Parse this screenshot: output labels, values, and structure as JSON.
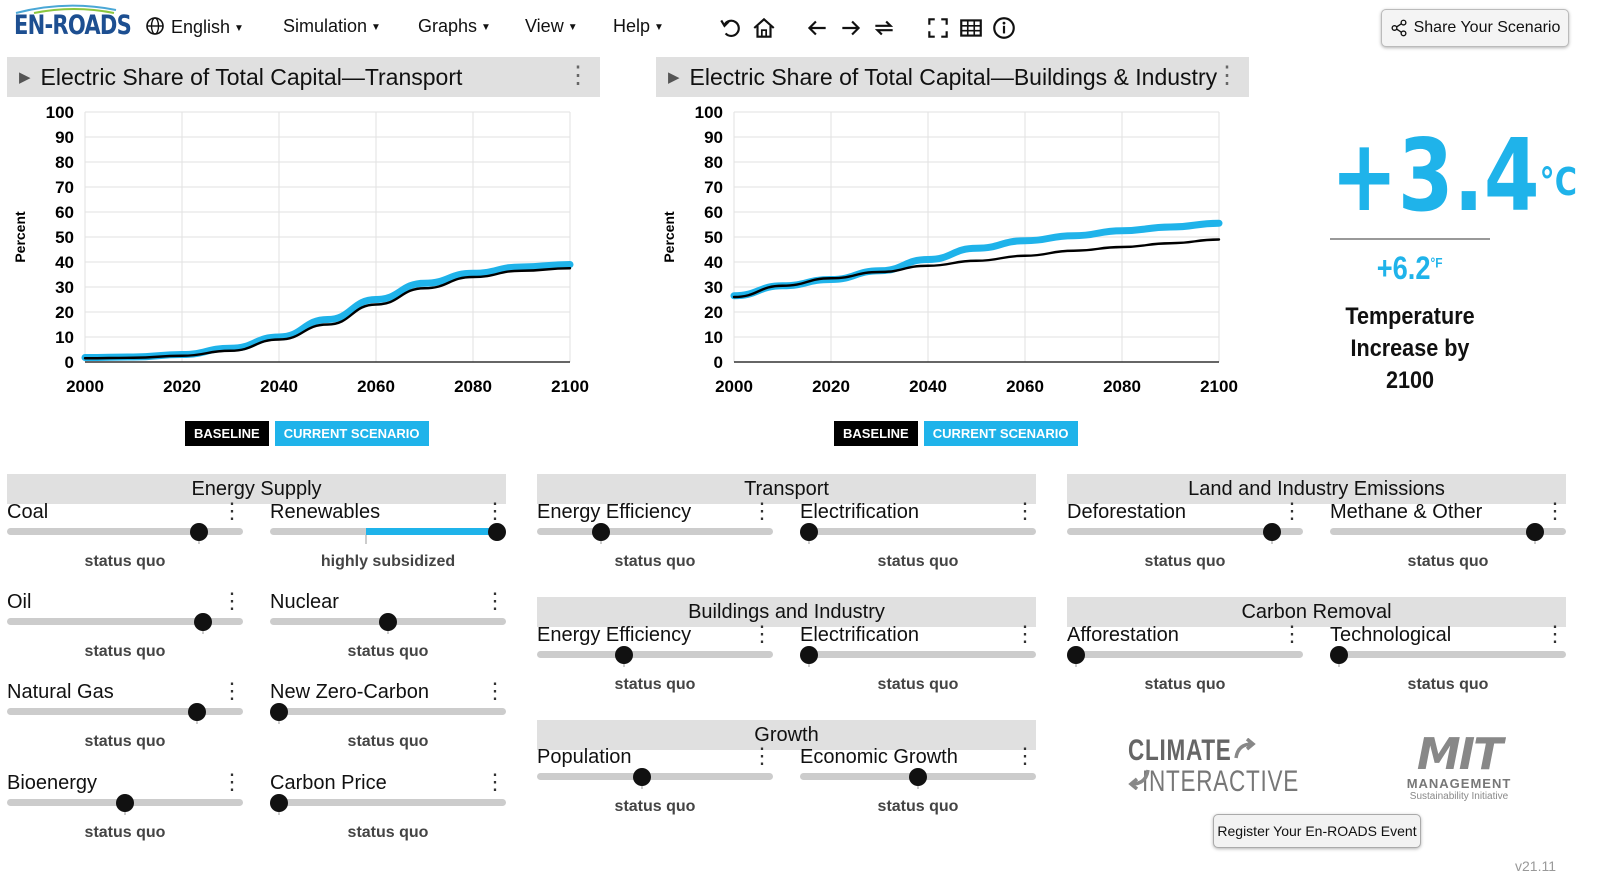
{
  "app": {
    "logo": "EN-ROADS",
    "version": "v21.11"
  },
  "menu": {
    "language": "English",
    "simulation": "Simulation",
    "graphs": "Graphs",
    "view": "View",
    "help": "Help"
  },
  "share_button": "Share Your Scenario",
  "charts": [
    {
      "title": "Electric Share of Total Capital—Transport",
      "chart_data": {
        "type": "line",
        "ylabel": "Percent",
        "xlim": [
          2000,
          2100
        ],
        "ylim": [
          0,
          100
        ],
        "x_ticks": [
          2000,
          2020,
          2040,
          2060,
          2080,
          2100
        ],
        "y_ticks": [
          0,
          10,
          20,
          30,
          40,
          50,
          60,
          70,
          80,
          90,
          100
        ],
        "series": [
          {
            "name": "BASELINE",
            "color": "#000000",
            "x": [
              2000,
              2010,
              2020,
              2030,
              2040,
              2050,
              2060,
              2070,
              2080,
              2090,
              2100
            ],
            "values": [
              1.5,
              1.7,
              2.5,
              4.5,
              9,
              15,
              23,
              29.5,
              34,
              36.5,
              37.5
            ]
          },
          {
            "name": "CURRENT SCENARIO",
            "color": "#1fb3ea",
            "x": [
              2000,
              2010,
              2020,
              2030,
              2040,
              2050,
              2060,
              2070,
              2080,
              2090,
              2100
            ],
            "values": [
              1.8,
              2,
              3,
              5.5,
              10,
              17,
              25,
              31.5,
              35.5,
              38,
              39
            ]
          }
        ]
      },
      "legend": {
        "baseline": "BASELINE",
        "current": "CURRENT SCENARIO"
      }
    },
    {
      "title": "Electric Share of Total Capital—Buildings & Industry",
      "chart_data": {
        "type": "line",
        "ylabel": "Percent",
        "xlim": [
          2000,
          2100
        ],
        "ylim": [
          0,
          100
        ],
        "x_ticks": [
          2000,
          2020,
          2040,
          2060,
          2080,
          2100
        ],
        "y_ticks": [
          0,
          10,
          20,
          30,
          40,
          50,
          60,
          70,
          80,
          90,
          100
        ],
        "series": [
          {
            "name": "BASELINE",
            "color": "#000000",
            "x": [
              2000,
              2010,
              2020,
              2030,
              2040,
              2050,
              2060,
              2070,
              2080,
              2090,
              2100
            ],
            "values": [
              26,
              30.5,
              33.5,
              36,
              38.5,
              40.5,
              42.5,
              44.5,
              46,
              47.5,
              49
            ]
          },
          {
            "name": "CURRENT SCENARIO",
            "color": "#1fb3ea",
            "x": [
              2000,
              2010,
              2020,
              2030,
              2040,
              2050,
              2060,
              2070,
              2080,
              2090,
              2100
            ],
            "values": [
              26.5,
              30.5,
              33,
              36.5,
              41,
              45.5,
              48.5,
              50.5,
              52.5,
              54,
              55.5
            ]
          }
        ]
      },
      "legend": {
        "baseline": "BASELINE",
        "current": "CURRENT SCENARIO"
      }
    }
  ],
  "temperature": {
    "celsius": "+3.4",
    "c_unit": "°C",
    "fahrenheit": "+6.2",
    "f_unit": "°F",
    "label_line1": "Temperature",
    "label_line2": "Increase by",
    "label_line3": "2100"
  },
  "sections": {
    "energy_supply": "Energy Supply",
    "transport": "Transport",
    "buildings": "Buildings and Industry",
    "growth": "Growth",
    "land": "Land and Industry Emissions",
    "carbon_removal": "Carbon Removal"
  },
  "sliders": {
    "coal": {
      "label": "Coal",
      "status": "status quo",
      "value": 0.84
    },
    "renewables": {
      "label": "Renewables",
      "status": "highly subsidized",
      "value": 1.0,
      "baseline": 0.4
    },
    "oil": {
      "label": "Oil",
      "status": "status quo",
      "value": 0.86
    },
    "nuclear": {
      "label": "Nuclear",
      "status": "status quo",
      "value": 0.5
    },
    "natural_gas": {
      "label": "Natural Gas",
      "status": "status quo",
      "value": 0.83
    },
    "new_zero_carbon": {
      "label": "New Zero-Carbon",
      "status": "status quo",
      "value": 0.0
    },
    "bioenergy": {
      "label": "Bioenergy",
      "status": "status quo",
      "value": 0.5
    },
    "carbon_price": {
      "label": "Carbon Price",
      "status": "status quo",
      "value": 0.0
    },
    "transport_efficiency": {
      "label": "Energy Efficiency",
      "status": "status quo",
      "value": 0.25
    },
    "transport_electrification": {
      "label": "Electrification",
      "status": "status quo",
      "value": 0.0
    },
    "buildings_efficiency": {
      "label": "Energy Efficiency",
      "status": "status quo",
      "value": 0.36
    },
    "buildings_electrification": {
      "label": "Electrification",
      "status": "status quo",
      "value": 0.0
    },
    "population": {
      "label": "Population",
      "status": "status quo",
      "value": 0.44
    },
    "economic_growth": {
      "label": "Economic Growth",
      "status": "status quo",
      "value": 0.5
    },
    "deforestation": {
      "label": "Deforestation",
      "status": "status quo",
      "value": 0.9
    },
    "methane": {
      "label": "Methane & Other",
      "status": "status quo",
      "value": 0.9
    },
    "afforestation": {
      "label": "Afforestation",
      "status": "status quo",
      "value": 0.0
    },
    "technological": {
      "label": "Technological",
      "status": "status quo",
      "value": 0.0
    }
  },
  "logos": {
    "climate": "CLIMATE",
    "interactive": "INTERACTIVE",
    "mit": "MIT",
    "management": "MANAGEMENT",
    "sustainability": "Sustainability Initiative"
  },
  "register_button": "Register Your En-ROADS Event"
}
